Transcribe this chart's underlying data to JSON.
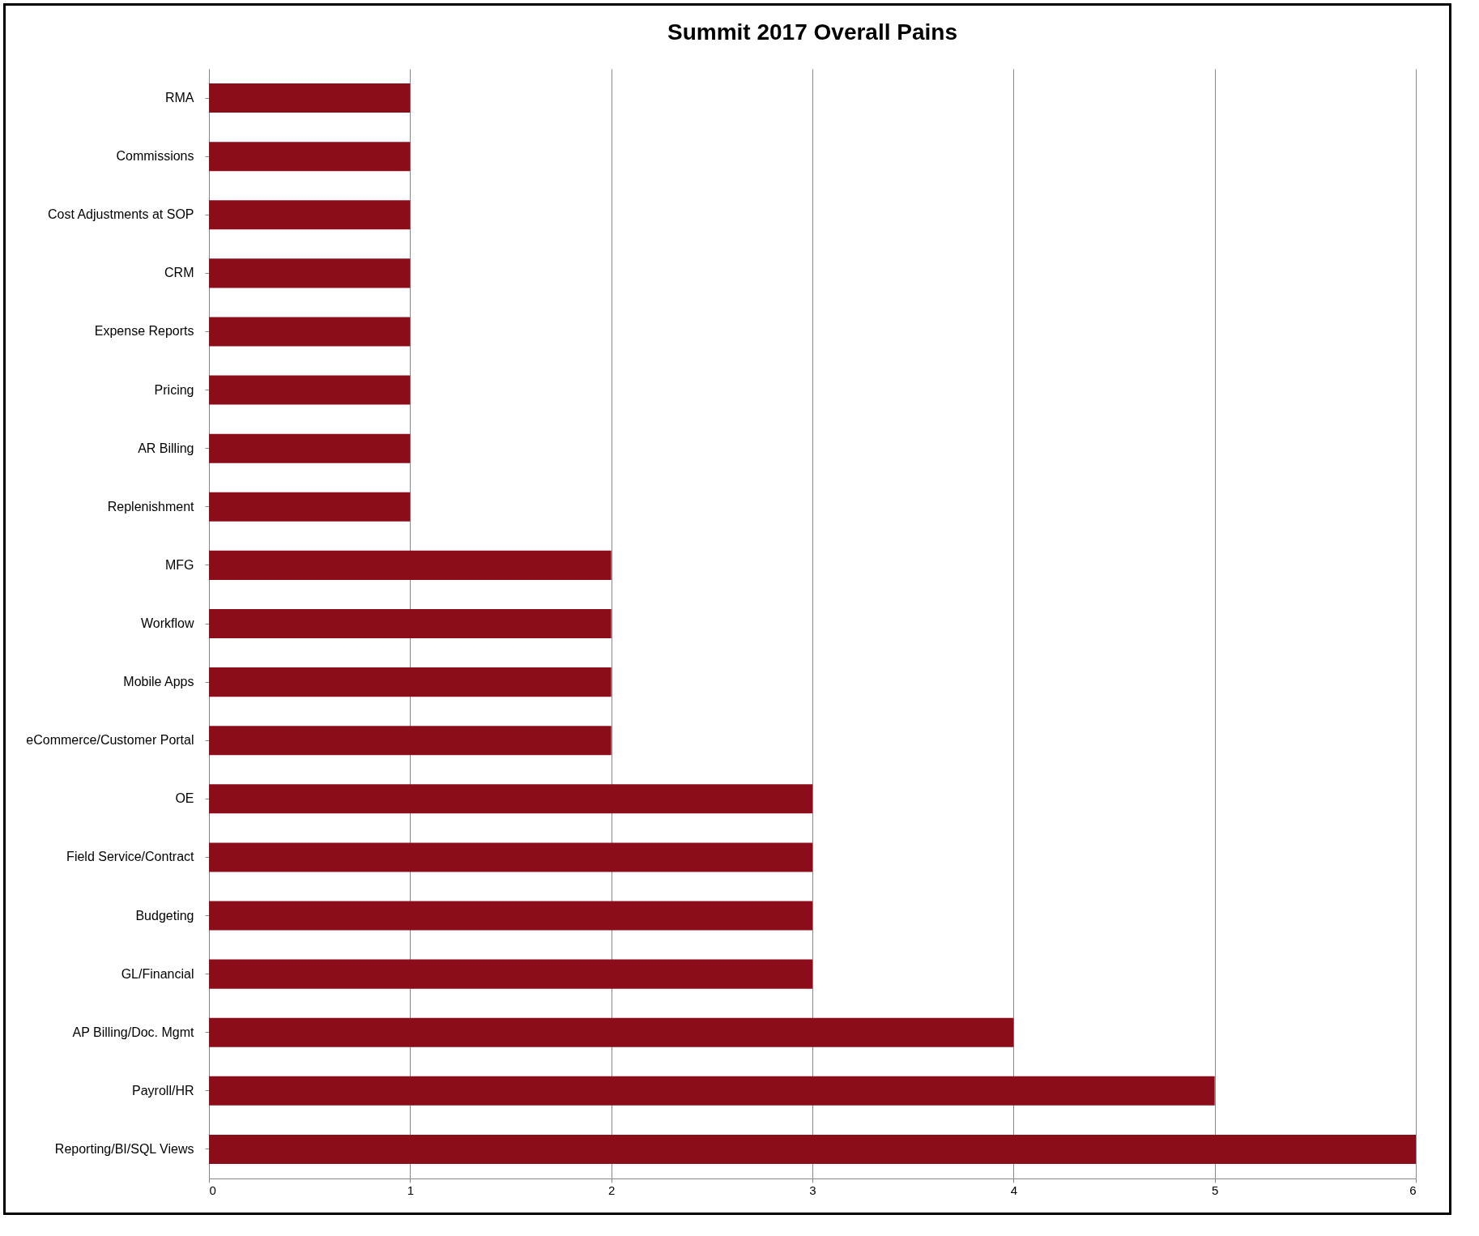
{
  "chart_data": {
    "type": "bar",
    "orientation": "horizontal",
    "title": "Summit 2017 Overall Pains",
    "categories": [
      "RMA",
      "Commissions",
      "Cost Adjustments at SOP",
      "CRM",
      "Expense Reports",
      "Pricing",
      "AR Billing",
      "Replenishment",
      "MFG",
      "Workflow",
      "Mobile Apps",
      "eCommerce/Customer Portal",
      "OE",
      "Field Service/Contract",
      "Budgeting",
      "GL/Financial",
      "AP Billing/Doc. Mgmt",
      "Payroll/HR",
      "Reporting/BI/SQL Views"
    ],
    "values": [
      1,
      1,
      1,
      1,
      1,
      1,
      1,
      1,
      2,
      2,
      2,
      2,
      3,
      3,
      3,
      3,
      4,
      5,
      6
    ],
    "color": "#8b0d1a",
    "xlim": [
      0,
      6
    ],
    "xticks": [
      0,
      1,
      2,
      3,
      4,
      5,
      6
    ],
    "grid": "x"
  }
}
